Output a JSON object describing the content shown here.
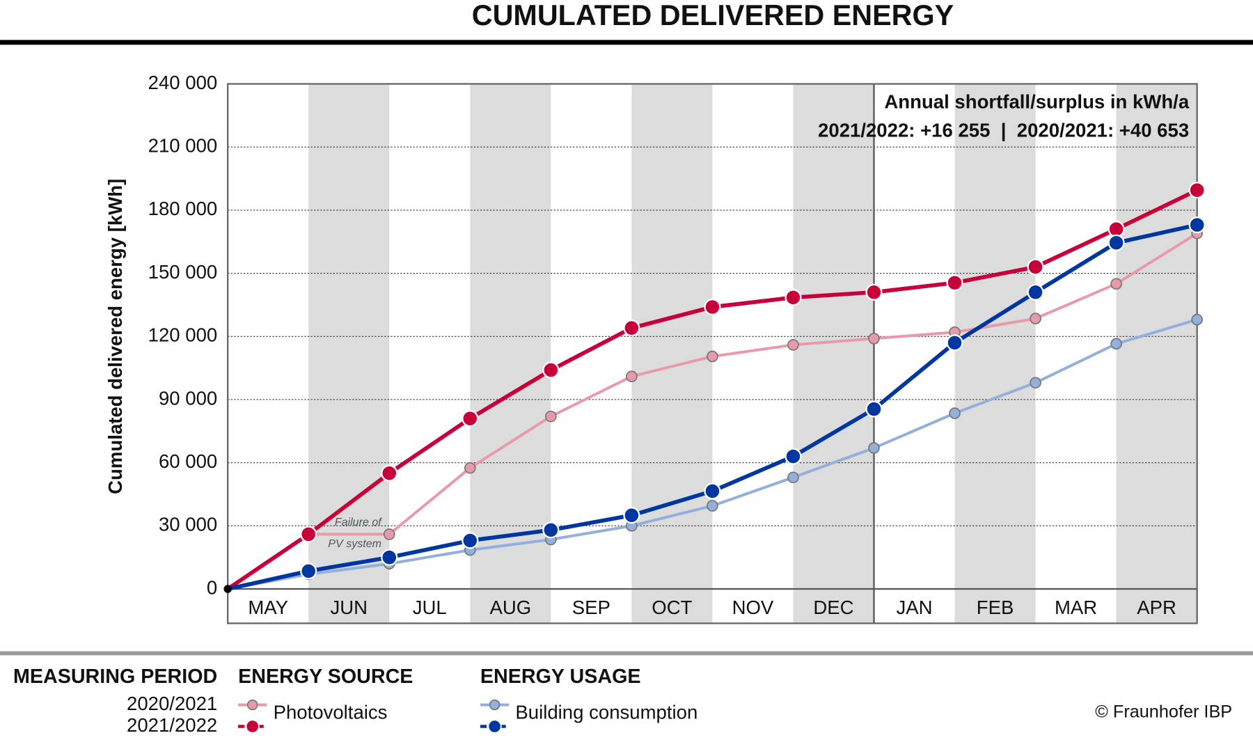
{
  "chart_data": {
    "type": "line",
    "title": "CUMULATED DELIVERED ENERGY",
    "ylabel": "Cumulated delivered energy [kWh]",
    "categories": [
      "MAY",
      "JUN",
      "JUL",
      "AUG",
      "SEP",
      "OCT",
      "NOV",
      "DEC",
      "JAN",
      "FEB",
      "MAR",
      "APR"
    ],
    "x": [
      0,
      1,
      2,
      3,
      4,
      5,
      6,
      7,
      8,
      9,
      10,
      11,
      12
    ],
    "xlim": [
      0,
      12
    ],
    "ylim": [
      0,
      240000
    ],
    "yticks": [
      0,
      {
        "value": 30000,
        "label": "30 000"
      },
      {
        "value": 60000,
        "label": "60 000"
      },
      {
        "value": 90000,
        "label": "90 000"
      },
      {
        "value": 120000,
        "label": "120 000"
      },
      {
        "value": 150000,
        "label": "150 000"
      },
      {
        "value": 180000,
        "label": "180 000"
      },
      {
        "value": 210000,
        "label": "210 000"
      },
      {
        "value": 240000,
        "label": "240 000"
      }
    ],
    "grid": true,
    "series": [
      {
        "name": "Photovoltaics",
        "period": "2020/2021",
        "color": "#e99aaa",
        "values": [
          0,
          26000,
          26000,
          57500,
          82000,
          101000,
          110500,
          116000,
          119000,
          122000,
          128500,
          145000,
          169000
        ]
      },
      {
        "name": "Building consumption",
        "period": "2020/2021",
        "color": "#93afdc",
        "values": [
          0,
          7000,
          12000,
          18500,
          23500,
          30000,
          39500,
          53000,
          67000,
          83500,
          98000,
          116500,
          128000
        ]
      },
      {
        "name": "Photovoltaics",
        "period": "2021/2022",
        "color": "#c8003a",
        "values": [
          0,
          26000,
          55000,
          81000,
          104000,
          124000,
          134000,
          138500,
          141000,
          145500,
          153000,
          171000,
          189500
        ]
      },
      {
        "name": "Building consumption",
        "period": "2021/2022",
        "color": "#0036a0",
        "values": [
          0,
          8500,
          15000,
          23000,
          28000,
          35000,
          46500,
          63000,
          85500,
          117000,
          141000,
          164500,
          173000
        ]
      }
    ],
    "annotations": {
      "summary_title": "Annual shortfall/surplus in kWh/a",
      "summary_values": "2021/2022: +16 255  |  2020/2021: +40 653",
      "failure_line1": "Failure of",
      "failure_line2": "PV system"
    },
    "legend": {
      "period_title": "MEASURING PERIOD",
      "periods": [
        "2020/2021",
        "2021/2022"
      ],
      "source_title": "ENERGY SOURCE",
      "usage_title": "ENERGY USAGE"
    },
    "copyright": "© Fraunhofer IBP"
  }
}
